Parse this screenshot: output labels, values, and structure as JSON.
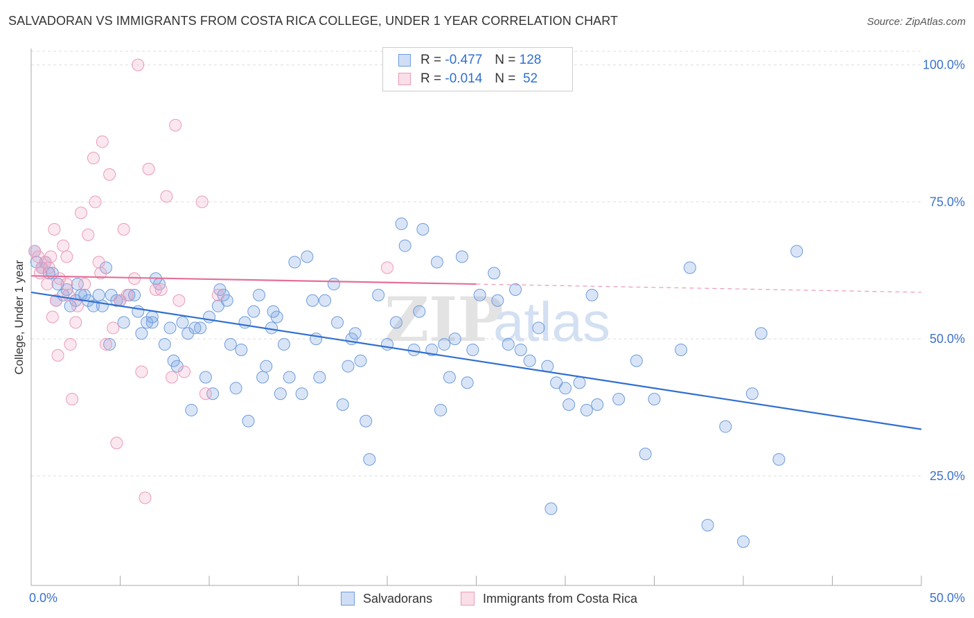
{
  "title": "SALVADORAN VS IMMIGRANTS FROM COSTA RICA COLLEGE, UNDER 1 YEAR CORRELATION CHART",
  "source": "Source: ZipAtlas.com",
  "watermark": "ZIPatlas",
  "colors": {
    "blue": "#2f6fd0",
    "blue_fill": "rgba(120,160,225,0.28)",
    "blue_stroke": "#6d9bdc",
    "pink": "#e46f97",
    "pink_fill": "rgba(240,160,190,0.25)",
    "pink_stroke": "#e99bb7",
    "grid": "#dddddd",
    "axis_label": "#3b72c9"
  },
  "legend": {
    "rows": [
      {
        "r_label": "R =",
        "r_value": "-0.477",
        "n_label": "N =",
        "n_value": "128"
      },
      {
        "r_label": "R =",
        "r_value": "-0.014",
        "n_label": "N =",
        "n_value": "52"
      }
    ]
  },
  "bottom_legend": {
    "series1": "Salvadorans",
    "series2": "Immigrants from Costa Rica"
  },
  "chart_data": {
    "type": "scatter",
    "ylabel": "College, Under 1 year",
    "xlabel": "",
    "xlim": [
      0,
      50
    ],
    "ylim": [
      5,
      103
    ],
    "x_tick_labels": [
      "0.0%",
      "50.0%"
    ],
    "y_tick_labels": [
      "25.0%",
      "50.0%",
      "75.0%",
      "100.0%"
    ],
    "y_ticks": [
      25,
      50,
      75,
      100
    ],
    "grid": true,
    "series": [
      {
        "name": "Salvadorans",
        "color": "blue",
        "trend": {
          "x0": 0,
          "y0": 58.5,
          "x1": 50,
          "y1": 33.5,
          "solid_to": 50
        },
        "points": [
          [
            0.2,
            66
          ],
          [
            0.8,
            64
          ],
          [
            1.2,
            62
          ],
          [
            1.5,
            60
          ],
          [
            1.8,
            58
          ],
          [
            2.0,
            59
          ],
          [
            2.2,
            56
          ],
          [
            2.5,
            57
          ],
          [
            2.8,
            58
          ],
          [
            3.2,
            57
          ],
          [
            3.5,
            56
          ],
          [
            4.2,
            63
          ],
          [
            4.5,
            58
          ],
          [
            4.8,
            57
          ],
          [
            5.2,
            53
          ],
          [
            5.5,
            58
          ],
          [
            5.8,
            58
          ],
          [
            6.0,
            55
          ],
          [
            6.2,
            51
          ],
          [
            6.5,
            53
          ],
          [
            6.8,
            53
          ],
          [
            7.0,
            61
          ],
          [
            7.2,
            60
          ],
          [
            7.5,
            49
          ],
          [
            7.8,
            52
          ],
          [
            8.0,
            46
          ],
          [
            8.2,
            45
          ],
          [
            8.5,
            53
          ],
          [
            8.8,
            51
          ],
          [
            9.0,
            37
          ],
          [
            9.5,
            52
          ],
          [
            9.8,
            43
          ],
          [
            10.0,
            54
          ],
          [
            10.2,
            40
          ],
          [
            10.5,
            56
          ],
          [
            10.8,
            58
          ],
          [
            11.0,
            57
          ],
          [
            11.2,
            49
          ],
          [
            11.5,
            41
          ],
          [
            11.8,
            48
          ],
          [
            12.0,
            53
          ],
          [
            12.2,
            35
          ],
          [
            12.5,
            55
          ],
          [
            12.8,
            58
          ],
          [
            13.0,
            43
          ],
          [
            13.2,
            45
          ],
          [
            13.5,
            52
          ],
          [
            13.8,
            54
          ],
          [
            14.0,
            40
          ],
          [
            14.2,
            49
          ],
          [
            14.5,
            43
          ],
          [
            14.8,
            64
          ],
          [
            15.2,
            40
          ],
          [
            15.5,
            65
          ],
          [
            15.8,
            57
          ],
          [
            16.0,
            50
          ],
          [
            16.2,
            43
          ],
          [
            16.5,
            57
          ],
          [
            17.0,
            60
          ],
          [
            17.2,
            53
          ],
          [
            17.5,
            38
          ],
          [
            17.8,
            45
          ],
          [
            18.0,
            50
          ],
          [
            18.2,
            51
          ],
          [
            18.5,
            46
          ],
          [
            18.8,
            35
          ],
          [
            19.0,
            28
          ],
          [
            19.5,
            58
          ],
          [
            20.0,
            49
          ],
          [
            20.5,
            53
          ],
          [
            20.8,
            71
          ],
          [
            21.0,
            67
          ],
          [
            21.5,
            48
          ],
          [
            21.8,
            55
          ],
          [
            22.0,
            70
          ],
          [
            22.5,
            48
          ],
          [
            22.8,
            64
          ],
          [
            23.0,
            37
          ],
          [
            23.2,
            49
          ],
          [
            23.5,
            43
          ],
          [
            23.8,
            50
          ],
          [
            24.2,
            65
          ],
          [
            24.5,
            42
          ],
          [
            24.8,
            48
          ],
          [
            25.2,
            58
          ],
          [
            26.0,
            62
          ],
          [
            26.2,
            57
          ],
          [
            26.8,
            49
          ],
          [
            27.2,
            59
          ],
          [
            27.5,
            48
          ],
          [
            28.0,
            46
          ],
          [
            28.5,
            52
          ],
          [
            29.0,
            45
          ],
          [
            29.2,
            19
          ],
          [
            29.5,
            42
          ],
          [
            30.0,
            41
          ],
          [
            30.2,
            38
          ],
          [
            30.8,
            42
          ],
          [
            31.2,
            37
          ],
          [
            31.5,
            58
          ],
          [
            31.8,
            38
          ],
          [
            33.0,
            39
          ],
          [
            34.0,
            46
          ],
          [
            34.5,
            29
          ],
          [
            35.0,
            39
          ],
          [
            36.5,
            48
          ],
          [
            37.0,
            63
          ],
          [
            38.0,
            16
          ],
          [
            39.0,
            34
          ],
          [
            40.0,
            13
          ],
          [
            40.5,
            40
          ],
          [
            41.0,
            51
          ],
          [
            42.0,
            28
          ],
          [
            43.0,
            66
          ],
          [
            0.3,
            64
          ],
          [
            0.6,
            63
          ],
          [
            1.0,
            62
          ],
          [
            1.4,
            57
          ],
          [
            2.6,
            60
          ],
          [
            3.0,
            58
          ],
          [
            3.8,
            58
          ],
          [
            4.0,
            56
          ],
          [
            4.4,
            49
          ],
          [
            5.0,
            57
          ],
          [
            6.8,
            54
          ],
          [
            9.2,
            52
          ],
          [
            10.6,
            59
          ],
          [
            13.6,
            55
          ]
        ]
      },
      {
        "name": "Immigrants from Costa Rica",
        "color": "pink",
        "trend": {
          "x0": 0,
          "y0": 61.5,
          "x1": 50,
          "y1": 58.5,
          "solid_to": 25
        },
        "points": [
          [
            0.2,
            66
          ],
          [
            0.4,
            65
          ],
          [
            0.6,
            63
          ],
          [
            0.8,
            64
          ],
          [
            0.9,
            60
          ],
          [
            1.0,
            63
          ],
          [
            1.2,
            54
          ],
          [
            1.3,
            70
          ],
          [
            1.4,
            57
          ],
          [
            1.5,
            47
          ],
          [
            1.6,
            61
          ],
          [
            1.8,
            67
          ],
          [
            2.0,
            65
          ],
          [
            2.1,
            58
          ],
          [
            2.2,
            49
          ],
          [
            2.3,
            39
          ],
          [
            2.5,
            53
          ],
          [
            2.6,
            56
          ],
          [
            2.8,
            73
          ],
          [
            3.0,
            60
          ],
          [
            3.2,
            69
          ],
          [
            3.5,
            83
          ],
          [
            3.6,
            75
          ],
          [
            3.8,
            64
          ],
          [
            3.9,
            62
          ],
          [
            4.0,
            86
          ],
          [
            4.2,
            49
          ],
          [
            4.4,
            80
          ],
          [
            4.6,
            52
          ],
          [
            4.8,
            31
          ],
          [
            5.0,
            57
          ],
          [
            5.2,
            70
          ],
          [
            5.4,
            58
          ],
          [
            5.8,
            61
          ],
          [
            6.0,
            100
          ],
          [
            6.2,
            44
          ],
          [
            6.4,
            21
          ],
          [
            6.6,
            81
          ],
          [
            7.0,
            59
          ],
          [
            7.3,
            59
          ],
          [
            7.6,
            76
          ],
          [
            7.9,
            43
          ],
          [
            8.1,
            89
          ],
          [
            8.3,
            57
          ],
          [
            8.6,
            44
          ],
          [
            9.6,
            75
          ],
          [
            9.8,
            40
          ],
          [
            10.5,
            58
          ],
          [
            20.0,
            63
          ],
          [
            2.0,
            60
          ],
          [
            0.5,
            62
          ],
          [
            1.1,
            65
          ]
        ]
      }
    ]
  }
}
